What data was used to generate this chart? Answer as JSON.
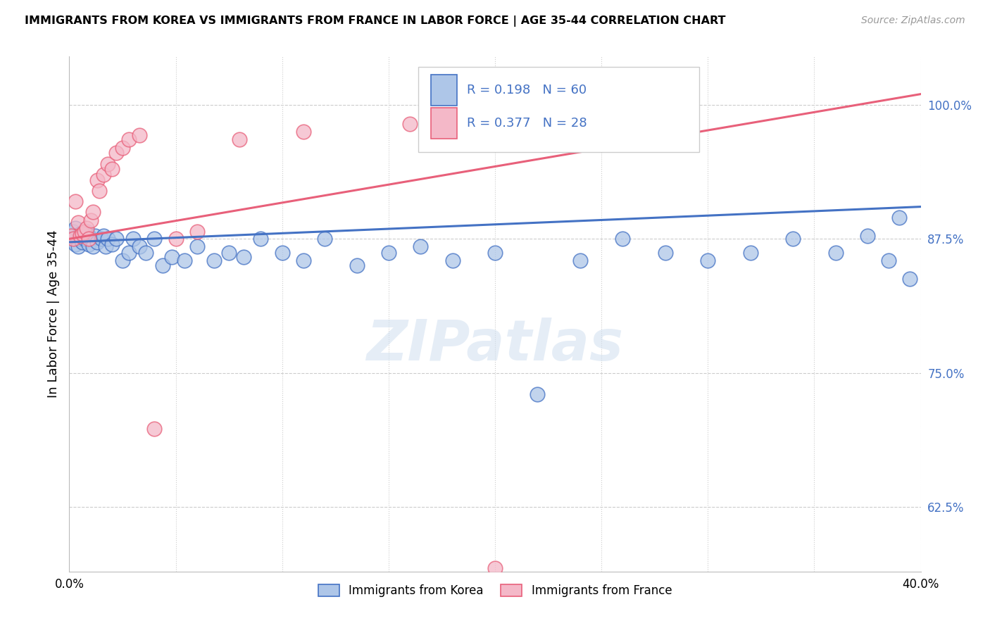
{
  "title": "IMMIGRANTS FROM KOREA VS IMMIGRANTS FROM FRANCE IN LABOR FORCE | AGE 35-44 CORRELATION CHART",
  "source": "Source: ZipAtlas.com",
  "ylabel": "In Labor Force | Age 35-44",
  "yticks": [
    0.625,
    0.75,
    0.875,
    1.0
  ],
  "ytick_labels": [
    "62.5%",
    "75.0%",
    "87.5%",
    "100.0%"
  ],
  "xmin": 0.0,
  "xmax": 0.4,
  "ymin": 0.565,
  "ymax": 1.045,
  "korea_R": 0.198,
  "korea_N": 60,
  "france_R": 0.377,
  "france_N": 28,
  "korea_color": "#aec6e8",
  "france_color": "#f4b8c8",
  "korea_edge_color": "#4472c4",
  "france_edge_color": "#e8607a",
  "korea_line_color": "#4472c4",
  "france_line_color": "#e8607a",
  "legend_label_korea": "Immigrants from Korea",
  "legend_label_france": "Immigrants from France",
  "korea_scatter_x": [
    0.001,
    0.002,
    0.002,
    0.003,
    0.003,
    0.004,
    0.004,
    0.005,
    0.005,
    0.006,
    0.006,
    0.007,
    0.007,
    0.008,
    0.009,
    0.009,
    0.01,
    0.011,
    0.012,
    0.013,
    0.015,
    0.016,
    0.017,
    0.018,
    0.02,
    0.022,
    0.025,
    0.028,
    0.03,
    0.033,
    0.036,
    0.04,
    0.044,
    0.048,
    0.054,
    0.06,
    0.068,
    0.075,
    0.082,
    0.09,
    0.1,
    0.11,
    0.12,
    0.135,
    0.15,
    0.165,
    0.18,
    0.2,
    0.22,
    0.24,
    0.26,
    0.28,
    0.3,
    0.32,
    0.34,
    0.36,
    0.375,
    0.385,
    0.39,
    0.395
  ],
  "korea_scatter_y": [
    0.878,
    0.875,
    0.882,
    0.87,
    0.885,
    0.875,
    0.868,
    0.88,
    0.875,
    0.878,
    0.872,
    0.88,
    0.875,
    0.882,
    0.87,
    0.878,
    0.875,
    0.868,
    0.878,
    0.872,
    0.875,
    0.878,
    0.868,
    0.875,
    0.87,
    0.875,
    0.855,
    0.862,
    0.875,
    0.868,
    0.862,
    0.875,
    0.85,
    0.858,
    0.855,
    0.868,
    0.855,
    0.862,
    0.858,
    0.875,
    0.862,
    0.855,
    0.875,
    0.85,
    0.862,
    0.868,
    0.855,
    0.862,
    0.73,
    0.855,
    0.875,
    0.862,
    0.855,
    0.862,
    0.875,
    0.862,
    0.878,
    0.855,
    0.895,
    0.838
  ],
  "france_scatter_x": [
    0.001,
    0.002,
    0.003,
    0.004,
    0.005,
    0.006,
    0.007,
    0.008,
    0.009,
    0.01,
    0.011,
    0.013,
    0.014,
    0.016,
    0.018,
    0.02,
    0.022,
    0.025,
    0.028,
    0.033,
    0.04,
    0.05,
    0.06,
    0.08,
    0.11,
    0.16,
    0.2,
    0.24
  ],
  "france_scatter_y": [
    0.878,
    0.875,
    0.91,
    0.89,
    0.878,
    0.88,
    0.882,
    0.885,
    0.875,
    0.892,
    0.9,
    0.93,
    0.92,
    0.935,
    0.945,
    0.94,
    0.955,
    0.96,
    0.968,
    0.972,
    0.698,
    0.875,
    0.882,
    0.968,
    0.975,
    0.982,
    0.568,
    0.995
  ],
  "korea_line_x0": 0.0,
  "korea_line_x1": 0.4,
  "korea_line_y0": 0.872,
  "korea_line_y1": 0.905,
  "france_line_x0": 0.0,
  "france_line_x1": 0.4,
  "france_line_y0": 0.875,
  "france_line_y1": 1.01,
  "watermark_text": "ZIPatlas",
  "watermark_fontsize": 58,
  "watermark_color": "#d0dff0",
  "watermark_alpha": 0.55
}
